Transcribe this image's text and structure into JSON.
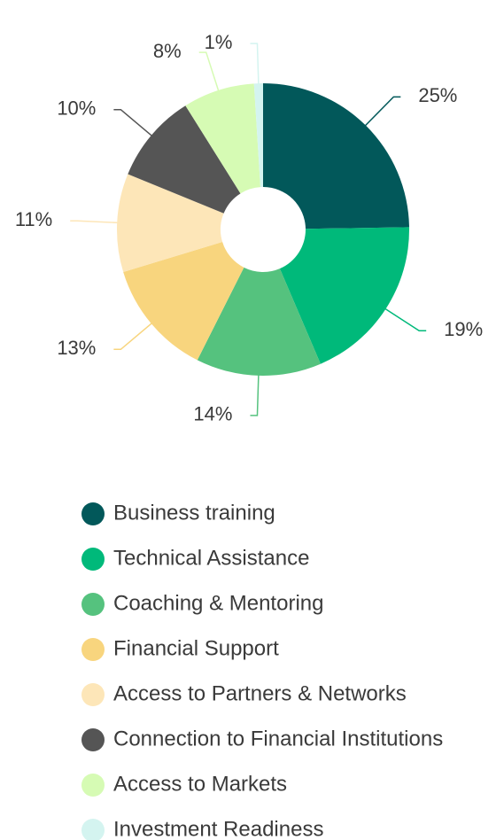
{
  "chart_data": {
    "type": "donut",
    "categories": [
      "Business training",
      "Technical Assistance",
      "Coaching & Mentoring",
      "Financial Support",
      "Access to Partners & Networks",
      "Connection to Financial Institutions",
      "Access to Markets",
      "Investment Readiness"
    ],
    "values": [
      25,
      19,
      14,
      13,
      11,
      10,
      8,
      1
    ],
    "value_labels": [
      "25%",
      "19%",
      "14%",
      "13%",
      "11%",
      "10%",
      "8%",
      "1%"
    ],
    "colors": [
      "#02585a",
      "#00b97a",
      "#55c27e",
      "#f8d57e",
      "#fde6b8",
      "#555555",
      "#d6fbb4",
      "#d4f4f0"
    ],
    "legend": "bottom"
  }
}
